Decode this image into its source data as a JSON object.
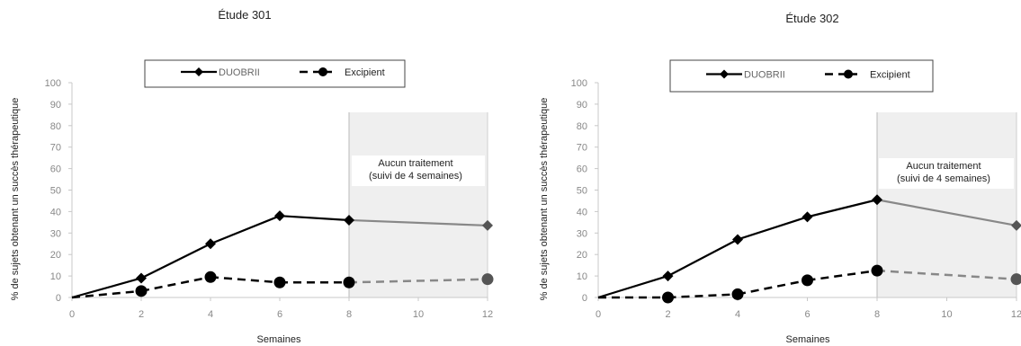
{
  "chart_data": [
    {
      "type": "line",
      "title": "Étude 301",
      "ylabel": "% de sujets obtenant un succès thérapeutique",
      "xlabel": "Semaines",
      "xticks": [
        0,
        2,
        4,
        6,
        8,
        10,
        12
      ],
      "yticks": [
        0,
        10,
        20,
        30,
        40,
        50,
        60,
        70,
        80,
        90,
        100
      ],
      "xlim": [
        0,
        12
      ],
      "ylim": [
        0,
        100
      ],
      "annotation": [
        "Aucun traitement",
        "(suivi de 4 semaines)"
      ],
      "shaded_region_x": [
        8,
        12
      ],
      "legend_position": "top-center",
      "series": [
        {
          "name": "DUOBRII",
          "style": "solid",
          "marker": "diamond",
          "color": "#000000",
          "x": [
            0,
            2,
            4,
            6,
            8,
            12
          ],
          "y": [
            0,
            9,
            25,
            38,
            36,
            33.5
          ]
        },
        {
          "name": "Excipient",
          "style": "dashed",
          "marker": "circle",
          "color": "#000000",
          "x": [
            0,
            2,
            4,
            6,
            8,
            12
          ],
          "y": [
            0,
            3,
            9.5,
            7,
            7,
            8.5
          ]
        }
      ]
    },
    {
      "type": "line",
      "title": "Étude 302",
      "ylabel": "% de sujets obtenant un succès thérapeutique",
      "xlabel": "Semaines",
      "xticks": [
        0,
        2,
        4,
        6,
        8,
        10,
        12
      ],
      "yticks": [
        0,
        10,
        20,
        30,
        40,
        50,
        60,
        70,
        80,
        90,
        100
      ],
      "xlim": [
        0,
        12
      ],
      "ylim": [
        0,
        100
      ],
      "annotation": [
        "Aucun traitement",
        "(suivi de 4 semaines)"
      ],
      "shaded_region_x": [
        8,
        12
      ],
      "legend_position": "top-center",
      "series": [
        {
          "name": "DUOBRII",
          "style": "solid",
          "marker": "diamond",
          "color": "#000000",
          "x": [
            0,
            2,
            4,
            6,
            8,
            12
          ],
          "y": [
            0,
            10,
            27,
            37.5,
            45.5,
            33.5
          ]
        },
        {
          "name": "Excipient",
          "style": "dashed",
          "marker": "circle",
          "color": "#000000",
          "x": [
            0,
            2,
            4,
            6,
            8,
            12
          ],
          "y": [
            0,
            0,
            1.5,
            8,
            12.5,
            8.5
          ]
        }
      ]
    }
  ]
}
